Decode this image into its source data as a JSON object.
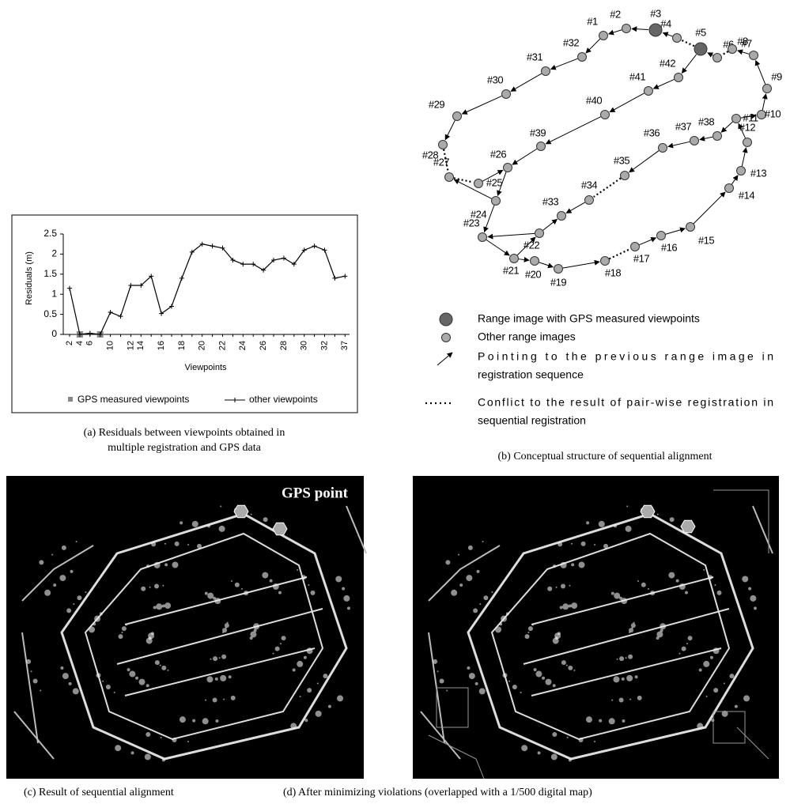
{
  "chart_data": {
    "type": "line",
    "xlabel": "Viewpoints",
    "ylabel": "Residuals (m)",
    "categories": [
      "2",
      "4",
      "6",
      null,
      "10",
      null,
      "12",
      "14",
      null,
      "16",
      null,
      "18",
      null,
      "20",
      null,
      "22",
      null,
      "24",
      null,
      "26",
      null,
      "28",
      null,
      "30",
      null,
      "32",
      null,
      "37"
    ],
    "series": [
      {
        "name": "GPS measured viewpoints",
        "color": "#888888",
        "values": [
          null,
          0,
          null,
          0,
          null,
          null,
          null,
          null,
          null,
          null,
          null,
          null,
          null,
          null,
          null,
          null,
          null,
          null,
          null,
          null,
          null,
          null,
          null,
          null,
          null,
          null,
          null,
          null
        ]
      },
      {
        "name": "other viewpoints",
        "color": "#000000",
        "values": [
          1.15,
          0,
          0.03,
          0,
          0.55,
          0.45,
          1.22,
          1.22,
          1.45,
          0.52,
          0.7,
          1.4,
          2.05,
          2.25,
          2.2,
          2.15,
          1.85,
          1.75,
          1.75,
          1.6,
          1.85,
          1.9,
          1.75,
          2.1,
          2.2,
          2.1,
          1.4,
          1.45
        ]
      }
    ],
    "ylim": [
      0,
      2.5
    ],
    "yticks": [
      0,
      0.5,
      1,
      1.5,
      2,
      2.5
    ],
    "grid": false,
    "legend": "bottom"
  },
  "diagram": {
    "nodes": [
      {
        "label": "#1"
      },
      {
        "label": "#2"
      },
      {
        "label": "#3"
      },
      {
        "label": "#4"
      },
      {
        "label": "#5"
      },
      {
        "label": "#6"
      },
      {
        "label": "#7"
      },
      {
        "label": "#8"
      },
      {
        "label": "#9"
      },
      {
        "label": "#10"
      },
      {
        "label": "#11"
      },
      {
        "label": "#12"
      },
      {
        "label": "#13"
      },
      {
        "label": "#14"
      },
      {
        "label": "#15"
      },
      {
        "label": "#16"
      },
      {
        "label": "#17"
      },
      {
        "label": "#18"
      },
      {
        "label": "#19"
      },
      {
        "label": "#20"
      },
      {
        "label": "#21"
      },
      {
        "label": "#22"
      },
      {
        "label": "#23"
      },
      {
        "label": "#24"
      },
      {
        "label": "#25"
      },
      {
        "label": "#26"
      },
      {
        "label": "#27"
      },
      {
        "label": "#28"
      },
      {
        "label": "#29"
      },
      {
        "label": "#30"
      },
      {
        "label": "#31"
      },
      {
        "label": "#32"
      },
      {
        "label": "#33"
      },
      {
        "label": "#34"
      },
      {
        "label": "#35"
      },
      {
        "label": "#36"
      },
      {
        "label": "#37"
      },
      {
        "label": "#38"
      },
      {
        "label": "#39"
      },
      {
        "label": "#40"
      },
      {
        "label": "#41"
      },
      {
        "label": "#42"
      }
    ],
    "legend": [
      {
        "lines": [
          "Range image with GPS measured viewpoints"
        ]
      },
      {
        "lines": [
          "Other range images"
        ]
      },
      {
        "lines": [
          "Pointing to the previous range image in",
          "registration sequence"
        ]
      },
      {
        "lines": [
          "Conflict to the result of pair-wise registration in",
          "sequential registration"
        ]
      }
    ]
  },
  "images": {
    "gps_label": "GPS point"
  },
  "captions": {
    "a": [
      "(a) Residuals between viewpoints obtained in",
      "multiple registration and GPS data"
    ],
    "b": "(b) Conceptual structure of sequential alignment",
    "c": "(c) Result of sequential alignment",
    "d": "(d) After minimizing violations (overlapped with a 1/500 digital map)"
  }
}
